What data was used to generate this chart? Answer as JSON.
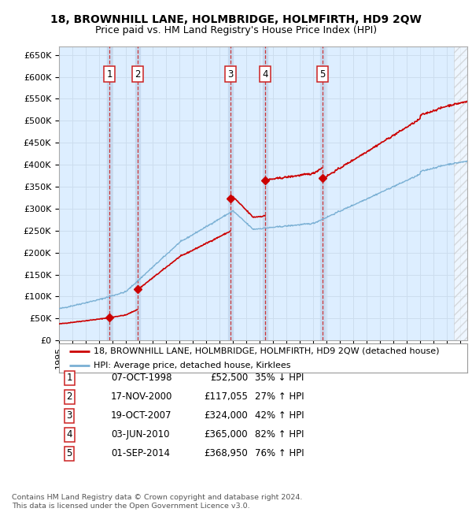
{
  "title": "18, BROWNHILL LANE, HOLMBRIDGE, HOLMFIRTH, HD9 2QW",
  "subtitle": "Price paid vs. HM Land Registry's House Price Index (HPI)",
  "ylim": [
    0,
    670000
  ],
  "yticks": [
    0,
    50000,
    100000,
    150000,
    200000,
    250000,
    300000,
    350000,
    400000,
    450000,
    500000,
    550000,
    600000,
    650000
  ],
  "ytick_labels": [
    "£0",
    "£50K",
    "£100K",
    "£150K",
    "£200K",
    "£250K",
    "£300K",
    "£350K",
    "£400K",
    "£450K",
    "£500K",
    "£550K",
    "£600K",
    "£650K"
  ],
  "xlim_start": 1995.0,
  "xlim_end": 2025.5,
  "background_color": "#ffffff",
  "plot_bg_color": "#ddeeff",
  "grid_color": "#ccddee",
  "property_line_color": "#cc0000",
  "hpi_line_color": "#7ab0d4",
  "sale_marker_color": "#cc0000",
  "vline_color": "#cc2222",
  "highlight_bg_color": "#c5d8ee",
  "hatch_color": "#bbbbbb",
  "hatch_start": 2024.5,
  "transactions": [
    {
      "num": 1,
      "date_str": "07-OCT-1998",
      "date_x": 1998.77,
      "price": 52500,
      "pct": "35%",
      "dir": "↓"
    },
    {
      "num": 2,
      "date_str": "17-NOV-2000",
      "date_x": 2000.88,
      "price": 117055,
      "pct": "27%",
      "dir": "↑"
    },
    {
      "num": 3,
      "date_str": "19-OCT-2007",
      "date_x": 2007.8,
      "price": 324000,
      "pct": "42%",
      "dir": "↑"
    },
    {
      "num": 4,
      "date_str": "03-JUN-2010",
      "date_x": 2010.42,
      "price": 365000,
      "pct": "82%",
      "dir": "↑"
    },
    {
      "num": 5,
      "date_str": "01-SEP-2014",
      "date_x": 2014.67,
      "price": 368950,
      "pct": "76%",
      "dir": "↑"
    }
  ],
  "legend_property_label": "18, BROWNHILL LANE, HOLMBRIDGE, HOLMFIRTH, HD9 2QW (detached house)",
  "legend_hpi_label": "HPI: Average price, detached house, Kirklees",
  "footer": "Contains HM Land Registry data © Crown copyright and database right 2024.\nThis data is licensed under the Open Government Licence v3.0.",
  "title_fontsize": 10,
  "subtitle_fontsize": 9,
  "tick_fontsize": 8,
  "legend_fontsize": 8,
  "table_fontsize": 8.5
}
